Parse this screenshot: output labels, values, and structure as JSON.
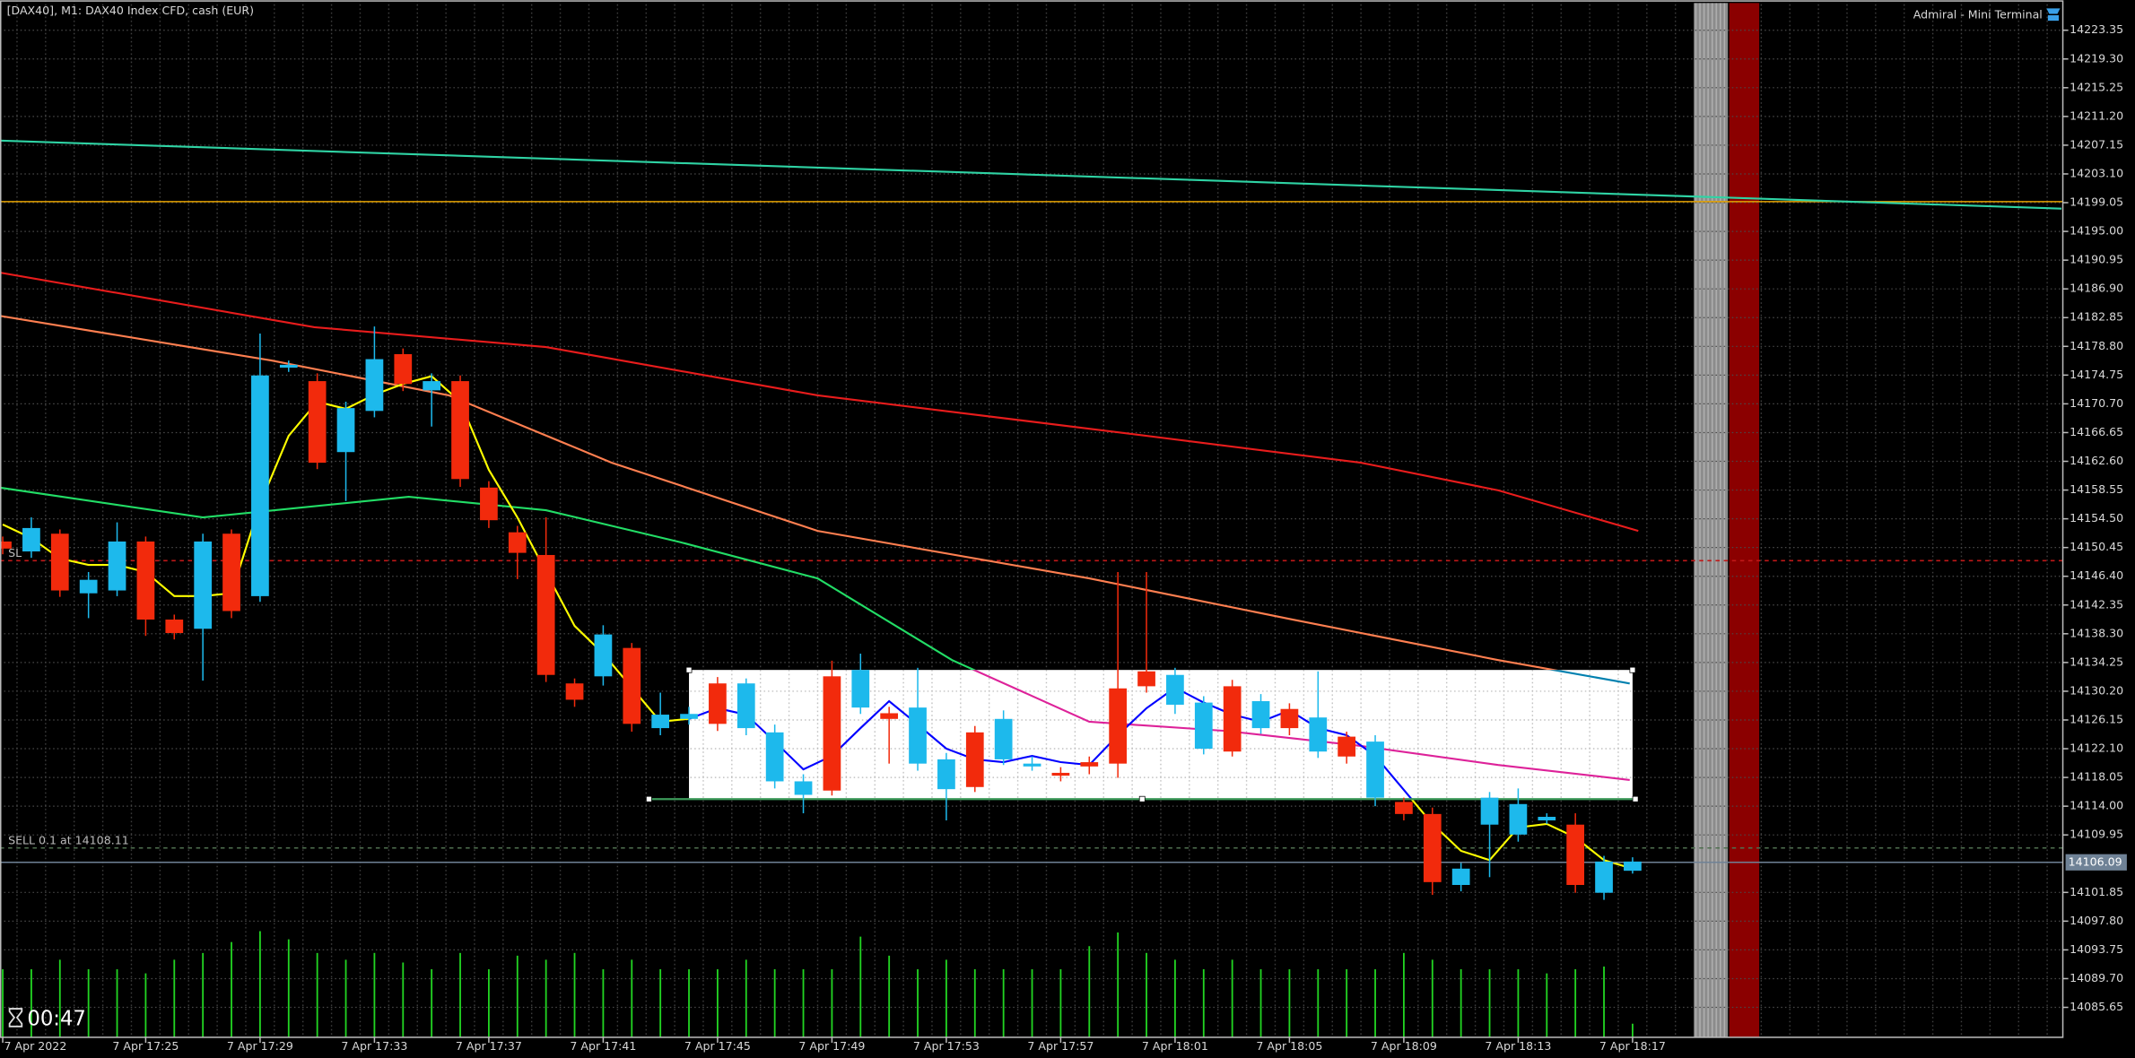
{
  "header": {
    "title": "[DAX40], M1:  DAX40 Index CFD, cash (EUR)",
    "plugin": "Admiral - Mini Terminal"
  },
  "timer": "00:47",
  "chart_data": {
    "type": "candlestick",
    "categories": [
      "7 Apr 2022",
      null,
      null,
      null,
      null,
      "7 Apr 17:25",
      null,
      null,
      null,
      "7 Apr 17:29",
      null,
      null,
      null,
      "7 Apr 17:33",
      null,
      null,
      null,
      "7 Apr 17:37",
      null,
      null,
      null,
      "7 Apr 17:41",
      null,
      null,
      null,
      "7 Apr 17:45",
      null,
      null,
      null,
      "7 Apr 17:49",
      null,
      null,
      null,
      "7 Apr 17:53",
      null,
      null,
      null,
      "7 Apr 17:57",
      null,
      null,
      null,
      "7 Apr 18:01",
      null,
      null,
      null,
      "7 Apr 18:05",
      null,
      null,
      null,
      "7 Apr 18:09",
      null,
      null,
      null,
      "7 Apr 18:13",
      null,
      null,
      null,
      "7 Apr 18:17"
    ],
    "open": [
      14151.3,
      14149.9,
      14152.4,
      14144.0,
      14144.4,
      14151.3,
      14140.3,
      14139.0,
      14152.4,
      14143.6,
      14175.8,
      14173.9,
      14163.9,
      14169.7,
      14177.7,
      14172.6,
      14173.9,
      14158.9,
      14152.6,
      14149.4,
      14131.3,
      14132.3,
      14136.3,
      14125.0,
      14126.3,
      14131.3,
      14125.0,
      14117.5,
      14115.6,
      14132.3,
      14127.9,
      14127.1,
      14120.0,
      14116.4,
      14124.4,
      14120.6,
      14119.6,
      14118.7,
      14120.2,
      14130.6,
      14133.0,
      14128.3,
      14122.1,
      14130.9,
      14125.0,
      14127.7,
      14121.7,
      14123.8,
      14115.2,
      14114.6,
      14112.9,
      14102.9,
      14111.4,
      14110.0,
      14112.0,
      14111.4,
      14101.8,
      14104.9
    ],
    "high": [
      14152.0,
      14154.7,
      14153.0,
      14147.0,
      14154.0,
      14152.0,
      14141.0,
      14152.4,
      14153.0,
      14180.6,
      14176.8,
      14175.0,
      14171.0,
      14181.6,
      14178.5,
      14175.0,
      14174.7,
      14159.8,
      14153.5,
      14154.7,
      14132.0,
      14139.5,
      14137.0,
      14130.0,
      14128.0,
      14132.2,
      14132.0,
      14125.5,
      14118.5,
      14134.5,
      14135.5,
      14128.0,
      14133.5,
      14121.5,
      14125.3,
      14127.5,
      14121.0,
      14119.5,
      14121.0,
      14147.0,
      14147.0,
      14133.5,
      14129.5,
      14131.8,
      14129.8,
      14128.5,
      14133.0,
      14124.5,
      14124.0,
      14115.2,
      14113.8,
      14106.0,
      14116.0,
      14116.5,
      14113.0,
      14113.0,
      14107.0,
      14106.8
    ],
    "low": [
      14149.5,
      14149.0,
      14143.5,
      14140.5,
      14143.6,
      14138.0,
      14137.5,
      14131.7,
      14140.5,
      14142.8,
      14175.2,
      14161.5,
      14157.0,
      14168.8,
      14172.5,
      14167.5,
      14159.0,
      14153.2,
      14146.0,
      14131.5,
      14128.0,
      14131.0,
      14124.5,
      14124.0,
      14125.5,
      14124.6,
      14124.0,
      14116.5,
      14113.0,
      14115.5,
      14127.0,
      14120.0,
      14119.0,
      14112.0,
      14116.0,
      14119.8,
      14119.0,
      14117.5,
      14118.5,
      14118.0,
      14130.0,
      14127.0,
      14121.3,
      14121.0,
      14124.2,
      14124.0,
      14120.8,
      14120.0,
      14114.0,
      14112.0,
      14101.5,
      14102.0,
      14104.0,
      14109.0,
      14111.5,
      14101.8,
      14100.8,
      14104.5
    ],
    "close": [
      14150.3,
      14153.2,
      14144.4,
      14145.9,
      14151.3,
      14140.3,
      14138.4,
      14151.3,
      14141.5,
      14174.7,
      14176.2,
      14162.4,
      14170.1,
      14177.0,
      14173.5,
      14173.9,
      14160.1,
      14154.3,
      14149.7,
      14132.5,
      14129.0,
      14138.2,
      14125.6,
      14126.9,
      14127.0,
      14125.6,
      14131.3,
      14124.4,
      14117.5,
      14116.2,
      14133.2,
      14126.3,
      14127.9,
      14120.6,
      14116.7,
      14126.3,
      14120.0,
      14118.3,
      14119.6,
      14120.0,
      14130.9,
      14132.5,
      14128.6,
      14121.7,
      14128.8,
      14125.0,
      14126.5,
      14121.0,
      14123.1,
      14112.9,
      14103.3,
      14105.2,
      14115.2,
      14114.3,
      14112.5,
      14102.9,
      14106.2,
      14106.2
    ],
    "up_color": "#1db9ec",
    "down_color": "#f22a0c",
    "volumes": {
      "color": "#22d422",
      "values": [
        50,
        50,
        57,
        50,
        50,
        47,
        57,
        62,
        70,
        78,
        72,
        62,
        57,
        62,
        55,
        50,
        62,
        50,
        60,
        57,
        62,
        50,
        57,
        50,
        50,
        50,
        57,
        50,
        50,
        50,
        74,
        60,
        50,
        57,
        50,
        50,
        50,
        50,
        67,
        77,
        62,
        57,
        50,
        57,
        50,
        50,
        50,
        50,
        50,
        62,
        57,
        50,
        50,
        50,
        47,
        50,
        52,
        10
      ]
    },
    "series": [
      {
        "color": "#2fd3a4",
        "x": [
          -0.1,
          72.0
        ],
        "values": [
          14207.8,
          14198.2
        ]
      },
      {
        "color": "#e81c1c",
        "x": [
          -0.1,
          10.9,
          19,
          28.5,
          38,
          47.5,
          52.3,
          57.2
        ],
        "values": [
          14189.2,
          14181.5,
          14178.7,
          14171.9,
          14167.2,
          14162.4,
          14158.5,
          14152.8
        ]
      },
      {
        "color": "#ff7f50",
        "x": [
          -0.1,
          9.4,
          15.6,
          21.3,
          28.5,
          38,
          45.1,
          52.3,
          56.9
        ],
        "values": [
          14183.1,
          14176.8,
          14171.9,
          14162.4,
          14152.8,
          14146.1,
          14140.3,
          14134.6,
          14131.3
        ]
      },
      {
        "color": "#22dd66",
        "x": [
          -0.1,
          7.0,
          14.2,
          19.0,
          23.7,
          28.5,
          33.2,
          38,
          42.8,
          47.5,
          52.3,
          56.9
        ],
        "values": [
          14158.9,
          14154.7,
          14157.6,
          14155.7,
          14151.2,
          14146.1,
          14134.6,
          14125.9,
          14124.6,
          14122.5,
          14119.8,
          14117.7
        ]
      },
      {
        "color": "#ffff00",
        "values": [
          14153.7,
          14151.8,
          14148.9,
          14148.0,
          14148.0,
          14147.0,
          14143.6,
          14143.6,
          14144.0,
          14156.6,
          14166.2,
          14171.0,
          14170.0,
          14172.0,
          14173.5,
          14174.6,
          14171.0,
          14161.4,
          14154.7,
          14147.0,
          14139.4,
          14135.5,
          14130.7,
          14125.9,
          14126.3,
          14127.8,
          14126.9,
          14123.1,
          14119.2,
          14121.1,
          14125.0,
          14128.8,
          14125.5,
          14122.1,
          14120.6,
          14120.2,
          14121.1,
          14120.2,
          14119.8,
          14124.0,
          14127.8,
          14130.7,
          14128.6,
          14126.9,
          14125.9,
          14127.5,
          14125.0,
          14124.0,
          14121.1,
          14116.3,
          14111.5,
          14107.7,
          14106.4,
          14111.0,
          14111.5,
          14109.6,
          14106.4,
          14105.2
        ]
      }
    ],
    "levels": [
      {
        "value": 14199.2,
        "color": "#e6a200",
        "style": "solid"
      },
      {
        "label": "SL",
        "value": 14148.6,
        "color": "#c01818",
        "style": "dashed"
      },
      {
        "label": "SELL 0.1 at 14108.11",
        "value": 14108.11,
        "color": "#4f6f4f",
        "style": "dashed"
      }
    ],
    "current_price": {
      "value": 14106.09,
      "color": "#6f8296"
    },
    "rectangle": {
      "x": [
        24,
        57
      ],
      "values": [
        14133.2,
        14115.0
      ]
    },
    "trendline": {
      "x": [
        22.6,
        57.1
      ],
      "values": [
        14115.0,
        14115.0
      ],
      "color": "#3d9a5a"
    },
    "ylim": [
      14081.43,
      14227.57
    ],
    "yticks": [
      14223.35,
      {
        "value": 14219.3,
        "label": "14219.30"
      },
      14215.25,
      {
        "value": 14211.2,
        "label": "14211.20"
      },
      14207.15,
      {
        "value": 14203.1,
        "label": "14203.10"
      },
      14199.05,
      {
        "value": 14195,
        "label": "14195.00"
      },
      14190.95,
      {
        "value": 14186.9,
        "label": "14186.90"
      },
      14182.85,
      {
        "value": 14178.8,
        "label": "14178.80"
      },
      14174.75,
      {
        "value": 14170.7,
        "label": "14170.70"
      },
      14166.65,
      {
        "value": 14162.6,
        "label": "14162.60"
      },
      14158.55,
      {
        "value": 14154.5,
        "label": "14154.50"
      },
      14150.45,
      {
        "value": 14146.4,
        "label": "14146.40"
      },
      14142.35,
      {
        "value": 14138.3,
        "label": "14138.30"
      },
      14134.25,
      {
        "value": 14130.2,
        "label": "14130.20"
      },
      14126.15,
      {
        "value": 14122.1,
        "label": "14122.10"
      },
      14118.05,
      {
        "value": 14114,
        "label": "14114.00"
      },
      14109.95,
      14101.85,
      {
        "value": 14097.8,
        "label": "14097.80"
      },
      14093.75,
      {
        "value": 14089.7,
        "label": "14089.70"
      },
      14085.65
    ],
    "grid": true
  }
}
